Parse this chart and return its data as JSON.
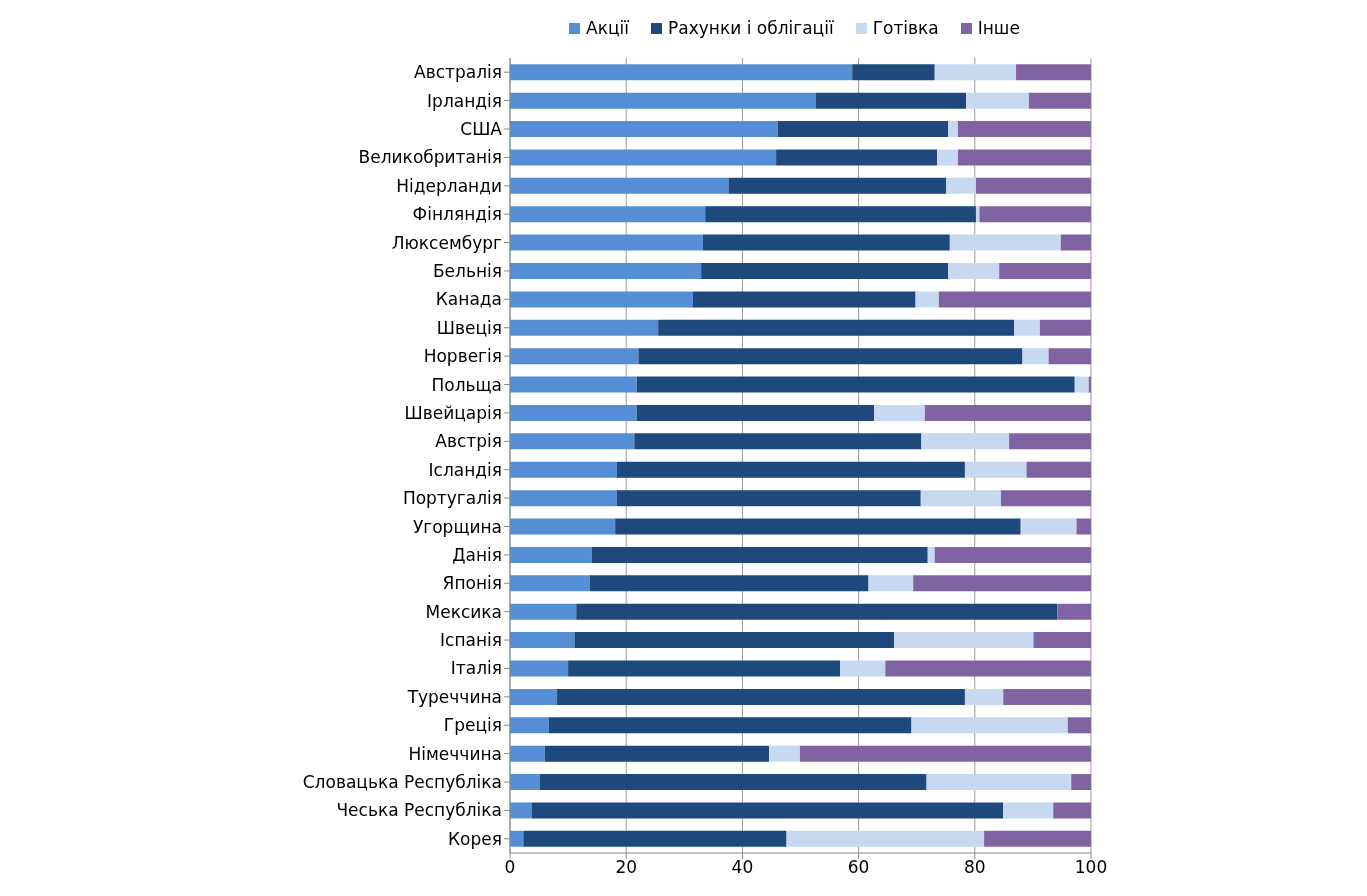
{
  "chart_data": {
    "type": "bar",
    "orientation": "horizontal",
    "stacked": true,
    "legend": "top",
    "grid": "x",
    "categories": [
      "Австралія",
      "Ірландія",
      "США",
      "Великобританія",
      "Нідерланди",
      "Фінляндія",
      "Люксембург",
      "Бельнія",
      "Канада",
      "Швеція",
      "Норвегія",
      "Польща",
      "Швейцарія",
      "Австрія",
      "Ісландія",
      "Португалія",
      "Угорщина",
      "Данія",
      "Японія",
      "Мексика",
      "Іспанія",
      "Італія",
      "Туреччина",
      "Греція",
      "Німеччина",
      "Словацька Республіка",
      "Чеська Республіка",
      "Корея"
    ],
    "xlim": [
      0,
      100
    ],
    "xticks": [
      0,
      20,
      40,
      60,
      80,
      100
    ],
    "series": [
      {
        "name": "Акції",
        "color": "#558ed5",
        "values": [
          58.9,
          52.6,
          46.1,
          45.8,
          37.6,
          33.6,
          33.2,
          32.9,
          31.5,
          25.5,
          22.1,
          21.8,
          21.8,
          21.4,
          18.4,
          18.4,
          18.1,
          14.1,
          13.7,
          11.4,
          11.1,
          10.0,
          8.1,
          6.7,
          6.0,
          5.1,
          3.7,
          2.3
        ]
      },
      {
        "name": "Рахунки і облігації",
        "color": "#1f497d",
        "values": [
          14.2,
          25.9,
          29.3,
          27.7,
          37.5,
          46.6,
          42.5,
          42.5,
          38.3,
          61.3,
          66.1,
          75.4,
          40.9,
          49.4,
          59.9,
          52.3,
          69.8,
          57.8,
          48.0,
          82.8,
          55.0,
          46.8,
          70.2,
          62.4,
          38.6,
          66.6,
          81.2,
          45.3
        ]
      },
      {
        "name": "Готівка",
        "color": "#c6d9f1",
        "values": [
          14.0,
          10.8,
          1.7,
          3.6,
          5.1,
          0.6,
          19.1,
          8.8,
          4.0,
          4.4,
          4.5,
          2.4,
          8.7,
          15.1,
          10.6,
          13.8,
          9.6,
          1.2,
          7.7,
          0,
          24.0,
          7.8,
          6.6,
          26.9,
          5.3,
          24.9,
          8.6,
          34.0
        ]
      },
      {
        "name": "Інше",
        "color": "#8064a2",
        "values": [
          12.9,
          10.7,
          22.9,
          22.9,
          19.8,
          19.2,
          5.2,
          15.8,
          26.2,
          8.8,
          7.3,
          0.4,
          28.6,
          14.1,
          11.1,
          15.5,
          2.5,
          26.9,
          30.6,
          5.8,
          9.9,
          35.4,
          15.1,
          4.0,
          50.1,
          3.4,
          6.5,
          18.4
        ]
      }
    ]
  }
}
